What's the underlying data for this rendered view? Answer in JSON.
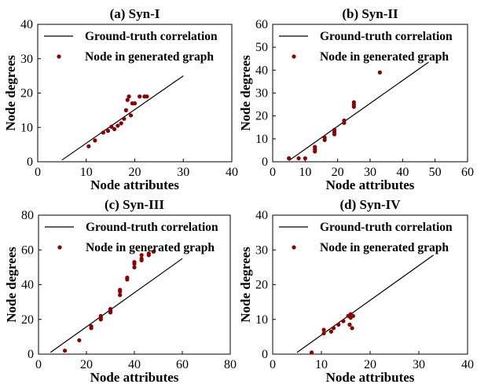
{
  "colors": {
    "truth_line": "#000000",
    "points": "#8b0000"
  },
  "chart_data": [
    {
      "type": "scatter",
      "title": "(a) Syn-I",
      "xlabel": "Node attributes",
      "ylabel": "Node degrees",
      "xlim": [
        0,
        40
      ],
      "ylim": [
        0,
        40
      ],
      "xticks": [
        "0",
        "10",
        "20",
        "30",
        "40"
      ],
      "yticks": [
        "0",
        "10",
        "20",
        "30",
        "40"
      ],
      "legend": [
        "Ground-truth correlation",
        "Node in generated graph"
      ],
      "truth_line": [
        [
          5,
          0.5
        ],
        [
          30,
          25
        ]
      ],
      "points": [
        [
          10.5,
          4.5
        ],
        [
          11.8,
          6.2
        ],
        [
          13.5,
          8.5
        ],
        [
          14.5,
          9
        ],
        [
          15.2,
          10.2
        ],
        [
          15.8,
          9.5
        ],
        [
          16.5,
          10.5
        ],
        [
          17.2,
          11.2
        ],
        [
          17.8,
          12.5
        ],
        [
          18.2,
          15
        ],
        [
          18.5,
          18
        ],
        [
          18.8,
          19
        ],
        [
          19.2,
          13.5
        ],
        [
          19.5,
          17
        ],
        [
          20,
          17
        ],
        [
          21,
          19
        ],
        [
          22,
          19
        ],
        [
          22.5,
          19
        ]
      ]
    },
    {
      "type": "scatter",
      "title": "(b) Syn-II",
      "xlabel": "Node attributes",
      "ylabel": "Node degrees",
      "xlim": [
        0,
        60
      ],
      "ylim": [
        0,
        60
      ],
      "xticks": [
        "0",
        "10",
        "20",
        "30",
        "40",
        "50",
        "60"
      ],
      "yticks": [
        "0",
        "10",
        "20",
        "30",
        "40",
        "50",
        "60"
      ],
      "legend": [
        "Ground-truth correlation",
        "Node in generated graph"
      ],
      "truth_line": [
        [
          5,
          0.5
        ],
        [
          48,
          43.5
        ]
      ],
      "points": [
        [
          5,
          1.5
        ],
        [
          8,
          1.5
        ],
        [
          10,
          1.5
        ],
        [
          13,
          4.5
        ],
        [
          13,
          5.5
        ],
        [
          13,
          6.5
        ],
        [
          16,
          9.5
        ],
        [
          16,
          10.5
        ],
        [
          19,
          12
        ],
        [
          19,
          13
        ],
        [
          19,
          14
        ],
        [
          22,
          17
        ],
        [
          22,
          18
        ],
        [
          25,
          24
        ],
        [
          25,
          25
        ],
        [
          25,
          26
        ],
        [
          33,
          39
        ]
      ]
    },
    {
      "type": "scatter",
      "title": "(c) Syn-III",
      "xlabel": "Node attributes",
      "ylabel": "Node degrees",
      "xlim": [
        0,
        80
      ],
      "ylim": [
        0,
        80
      ],
      "xticks": [
        "0",
        "20",
        "40",
        "60",
        "80"
      ],
      "yticks": [
        "0",
        "20",
        "40",
        "60",
        "80"
      ],
      "legend": [
        "Ground-truth correlation",
        "Node in generated graph"
      ],
      "truth_line": [
        [
          5,
          1
        ],
        [
          60,
          55
        ]
      ],
      "points": [
        [
          11,
          2
        ],
        [
          17,
          8
        ],
        [
          22,
          15
        ],
        [
          22,
          16
        ],
        [
          26,
          20
        ],
        [
          26,
          21
        ],
        [
          26,
          22
        ],
        [
          30,
          24
        ],
        [
          30,
          25
        ],
        [
          30,
          26
        ],
        [
          34,
          34
        ],
        [
          34,
          36
        ],
        [
          34,
          37
        ],
        [
          37,
          43
        ],
        [
          37,
          44
        ],
        [
          40,
          50
        ],
        [
          40,
          52
        ],
        [
          40,
          53
        ],
        [
          43,
          54
        ],
        [
          43,
          55
        ],
        [
          43,
          57
        ],
        [
          46,
          57
        ],
        [
          46,
          58
        ],
        [
          48,
          59
        ]
      ]
    },
    {
      "type": "scatter",
      "title": "(d) Syn-IV",
      "xlabel": "Node attributes",
      "ylabel": "Node degrees",
      "xlim": [
        0,
        40
      ],
      "ylim": [
        0,
        40
      ],
      "xticks": [
        "0",
        "10",
        "20",
        "30",
        "40"
      ],
      "yticks": [
        "0",
        "10",
        "20",
        "30",
        "40"
      ],
      "legend": [
        "Ground-truth correlation",
        "Node in generated graph"
      ],
      "truth_line": [
        [
          5,
          0.5
        ],
        [
          33,
          28.5
        ]
      ],
      "points": [
        [
          8,
          0.5
        ],
        [
          10.5,
          6
        ],
        [
          10.5,
          7
        ],
        [
          12,
          6.5
        ],
        [
          12.5,
          7.5
        ],
        [
          13.5,
          8.5
        ],
        [
          14.5,
          9.5
        ],
        [
          15.5,
          11
        ],
        [
          15.8,
          8.5
        ],
        [
          16,
          10.5
        ],
        [
          16,
          11.5
        ],
        [
          16.3,
          7.5
        ],
        [
          16.5,
          11
        ]
      ]
    }
  ]
}
